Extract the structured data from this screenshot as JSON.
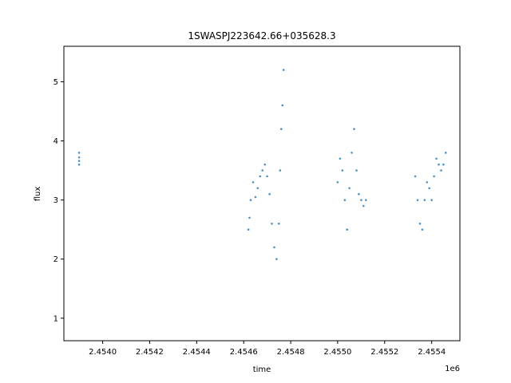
{
  "chart_data": {
    "type": "scatter",
    "title": "1SWASPJ223642.66+035628.3",
    "xlabel": "time",
    "ylabel": "flux",
    "x_offset_label": "1e6",
    "xlim": [
      2453835,
      2455520
    ],
    "ylim": [
      0.62,
      5.6
    ],
    "x_ticks": [
      2.454,
      2.4542,
      2.4544,
      2.4546,
      2.4548,
      2.455,
      2.4552,
      2.4554
    ],
    "x_tick_labels": [
      "2.4540",
      "2.4542",
      "2.4544",
      "2.4546",
      "2.4548",
      "2.4550",
      "2.4552",
      "2.4554"
    ],
    "y_ticks": [
      1,
      2,
      3,
      4,
      5
    ],
    "y_tick_labels": [
      "1",
      "2",
      "3",
      "4",
      "5"
    ],
    "grid": false,
    "legend": "none",
    "colors": {
      "points": "#1f77b4"
    },
    "series": [
      {
        "points": [
          [
            2453900,
            3.8
          ],
          [
            2453900,
            3.72
          ],
          [
            2453900,
            3.66
          ],
          [
            2453900,
            3.6
          ],
          [
            2454620,
            2.5
          ],
          [
            2454625,
            2.7
          ],
          [
            2454630,
            3.0
          ],
          [
            2454640,
            3.3
          ],
          [
            2454650,
            3.05
          ],
          [
            2454660,
            3.2
          ],
          [
            2454670,
            3.4
          ],
          [
            2454680,
            3.5
          ],
          [
            2454690,
            3.6
          ],
          [
            2454700,
            3.4
          ],
          [
            2454710,
            3.1
          ],
          [
            2454720,
            2.6
          ],
          [
            2454730,
            2.2
          ],
          [
            2454740,
            2.0
          ],
          [
            2454750,
            2.6
          ],
          [
            2454755,
            3.5
          ],
          [
            2454760,
            4.2
          ],
          [
            2454765,
            4.6
          ],
          [
            2454770,
            5.2
          ],
          [
            2455000,
            3.3
          ],
          [
            2455010,
            3.7
          ],
          [
            2455020,
            3.5
          ],
          [
            2455030,
            3.0
          ],
          [
            2455040,
            2.5
          ],
          [
            2455050,
            3.2
          ],
          [
            2455060,
            3.8
          ],
          [
            2455070,
            4.2
          ],
          [
            2455080,
            3.5
          ],
          [
            2455090,
            3.1
          ],
          [
            2455100,
            3.0
          ],
          [
            2455110,
            2.9
          ],
          [
            2455120,
            3.0
          ],
          [
            2455330,
            3.4
          ],
          [
            2455340,
            3.0
          ],
          [
            2455350,
            2.6
          ],
          [
            2455360,
            2.5
          ],
          [
            2455370,
            3.0
          ],
          [
            2455380,
            3.3
          ],
          [
            2455390,
            3.2
          ],
          [
            2455400,
            3.0
          ],
          [
            2455410,
            3.4
          ],
          [
            2455420,
            3.7
          ],
          [
            2455430,
            3.6
          ],
          [
            2455440,
            3.5
          ],
          [
            2455450,
            3.6
          ],
          [
            2455460,
            3.8
          ]
        ]
      }
    ]
  }
}
